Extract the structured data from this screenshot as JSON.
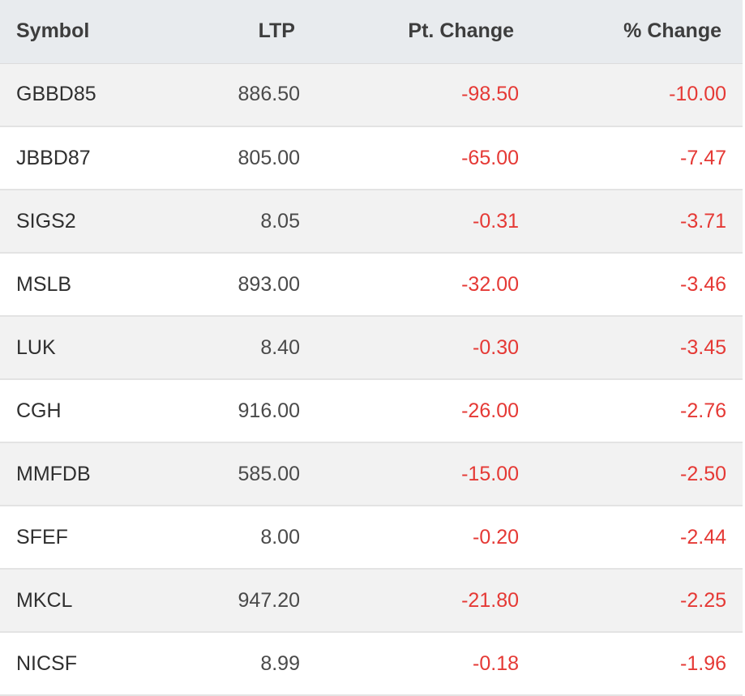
{
  "table": {
    "headers": {
      "symbol": "Symbol",
      "ltp": "LTP",
      "pt_change": "Pt. Change",
      "pct_change": "% Change"
    },
    "rows": [
      {
        "symbol": "GBBD85",
        "ltp": "886.50",
        "pt_change": "-98.50",
        "pct_change": "-10.00"
      },
      {
        "symbol": "JBBD87",
        "ltp": "805.00",
        "pt_change": "-65.00",
        "pct_change": "-7.47"
      },
      {
        "symbol": "SIGS2",
        "ltp": "8.05",
        "pt_change": "-0.31",
        "pct_change": "-3.71"
      },
      {
        "symbol": "MSLB",
        "ltp": "893.00",
        "pt_change": "-32.00",
        "pct_change": "-3.46"
      },
      {
        "symbol": "LUK",
        "ltp": "8.40",
        "pt_change": "-0.30",
        "pct_change": "-3.45"
      },
      {
        "symbol": "CGH",
        "ltp": "916.00",
        "pt_change": "-26.00",
        "pct_change": "-2.76"
      },
      {
        "symbol": "MMFDB",
        "ltp": "585.00",
        "pt_change": "-15.00",
        "pct_change": "-2.50"
      },
      {
        "symbol": "SFEF",
        "ltp": "8.00",
        "pt_change": "-0.20",
        "pct_change": "-2.44"
      },
      {
        "symbol": "MKCL",
        "ltp": "947.20",
        "pt_change": "-21.80",
        "pct_change": "-2.25"
      },
      {
        "symbol": "NICSF",
        "ltp": "8.99",
        "pt_change": "-0.18",
        "pct_change": "-1.96"
      }
    ]
  },
  "colors": {
    "negative": "#e53935",
    "header_bg": "#e8ebee",
    "stripe_bg": "#f2f2f2"
  }
}
